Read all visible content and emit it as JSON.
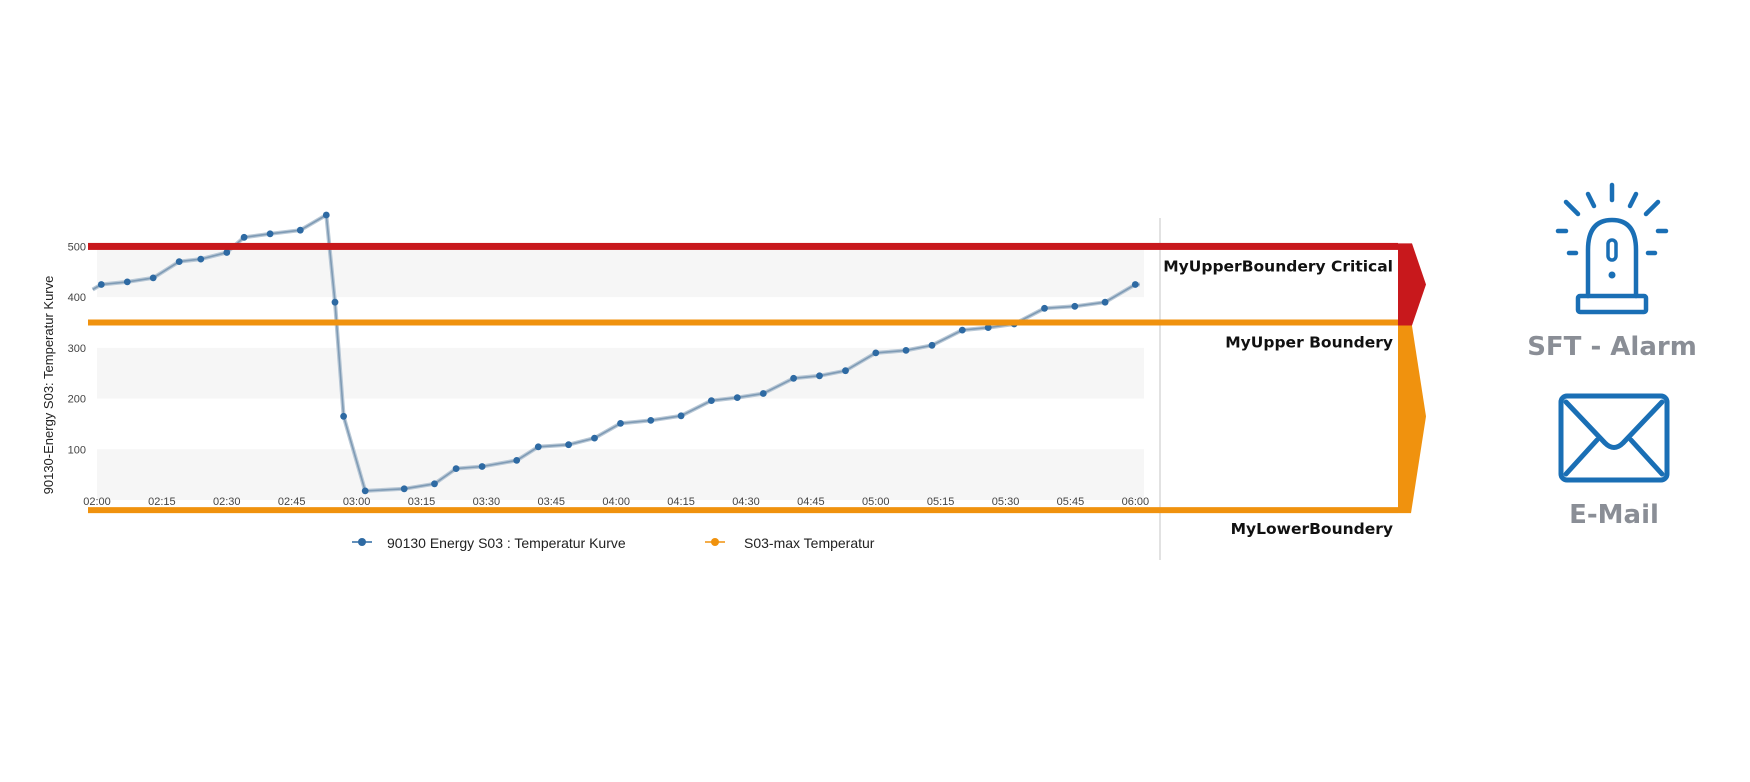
{
  "chart_data": {
    "type": "line",
    "ylabel": "90130-Energy S03: Temperatur Kurve",
    "xlabel": "",
    "yticks": [
      "100",
      "200",
      "300",
      "400",
      "500"
    ],
    "ylim": [
      0,
      560
    ],
    "xticks": [
      "02:00",
      "02:15",
      "02:30",
      "02:45",
      "03:00",
      "03:15",
      "03:30",
      "03:45",
      "04:00",
      "04:15",
      "04:30",
      "04:45",
      "05:00",
      "05:15",
      "05:30",
      "05:45",
      "06:00"
    ],
    "x_minutes_range": [
      120,
      362
    ],
    "grid": "alternating horizontal bands",
    "series": [
      {
        "name": "90130 Energy S03 : Temperatur Kurve",
        "color": "#2e6aa3",
        "x": [
          "01:59",
          "02:01",
          "02:07",
          "02:13",
          "02:19",
          "02:24",
          "02:30",
          "02:34",
          "02:40",
          "02:47",
          "02:53",
          "02:55",
          "02:57",
          "03:02",
          "03:11",
          "03:18",
          "03:23",
          "03:29",
          "03:37",
          "03:42",
          "03:49",
          "03:55",
          "04:01",
          "04:08",
          "04:15",
          "04:22",
          "04:28",
          "04:34",
          "04:41",
          "04:47",
          "04:53",
          "05:00",
          "05:07",
          "05:13",
          "05:20",
          "05:26",
          "05:32",
          "05:39",
          "05:46",
          "05:53",
          "06:00",
          "06:01"
        ],
        "values": [
          415,
          425,
          430,
          438,
          470,
          475,
          488,
          518,
          525,
          532,
          562,
          390,
          165,
          18,
          22,
          32,
          62,
          66,
          78,
          105,
          109,
          122,
          151,
          157,
          166,
          196,
          202,
          210,
          240,
          245,
          255,
          290,
          295,
          305,
          335,
          340,
          347,
          378,
          382,
          390,
          425,
          425
        ]
      },
      {
        "name": "S03-max Temperatur",
        "color": "#f0920e",
        "values": []
      }
    ],
    "legend_position": "bottom",
    "thresholds": [
      {
        "label": "MyUpperBoundery Critical",
        "value": 500,
        "color": "#c8181c"
      },
      {
        "label": "MyUpper Boundery",
        "value": 350,
        "color": "#f0920e"
      },
      {
        "label": "MyLowerBoundery",
        "value": -20,
        "color": "#f0920e"
      }
    ]
  },
  "side": {
    "alarm_label": "SFT - Alarm",
    "email_label": "E-Mail",
    "alarm_icon": "siren-icon",
    "email_icon": "envelope-icon",
    "alarm_color": "#1a6fb5",
    "email_color": "#1a6fb5"
  }
}
